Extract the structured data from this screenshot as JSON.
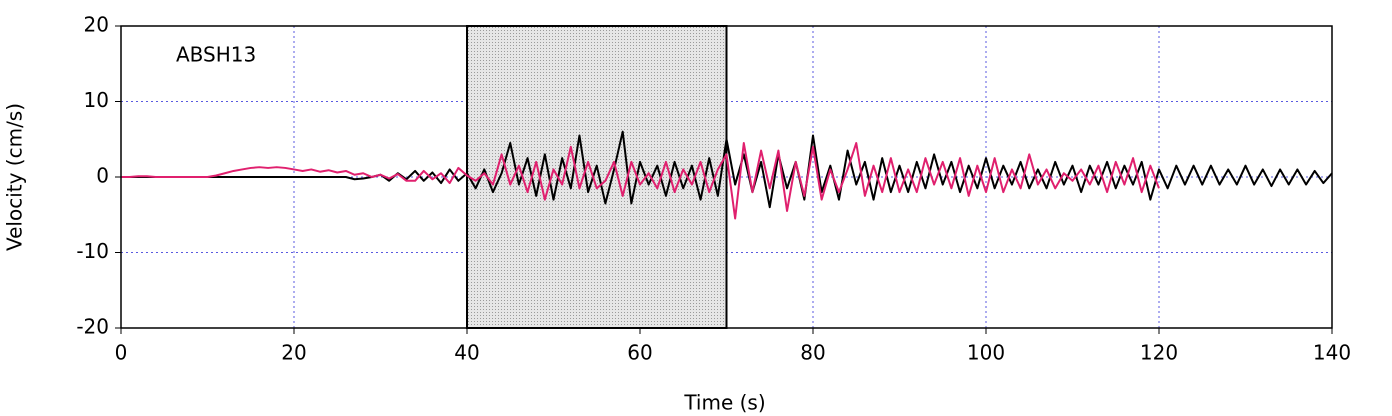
{
  "chart_data": {
    "type": "line",
    "annotation": "ABSH13",
    "xlabel": "Time (s)",
    "ylabel": "Velocity (cm/s)",
    "xlim": [
      0,
      140
    ],
    "ylim": [
      -20,
      20
    ],
    "xticks": [
      0,
      20,
      40,
      60,
      80,
      100,
      120,
      140
    ],
    "yticks": [
      -20,
      -10,
      0,
      10,
      20
    ],
    "grid": true,
    "shaded_region": [
      40,
      70
    ],
    "x": [
      0,
      1,
      2,
      3,
      4,
      5,
      6,
      7,
      8,
      9,
      10,
      11,
      12,
      13,
      14,
      15,
      16,
      17,
      18,
      19,
      20,
      21,
      22,
      23,
      24,
      25,
      26,
      27,
      28,
      29,
      30,
      31,
      32,
      33,
      34,
      35,
      36,
      37,
      38,
      39,
      40,
      41,
      42,
      43,
      44,
      45,
      46,
      47,
      48,
      49,
      50,
      51,
      52,
      53,
      54,
      55,
      56,
      57,
      58,
      59,
      60,
      61,
      62,
      63,
      64,
      65,
      66,
      67,
      68,
      69,
      70,
      71,
      72,
      73,
      74,
      75,
      76,
      77,
      78,
      79,
      80,
      81,
      82,
      83,
      84,
      85,
      86,
      87,
      88,
      89,
      90,
      91,
      92,
      93,
      94,
      95,
      96,
      97,
      98,
      99,
      100,
      101,
      102,
      103,
      104,
      105,
      106,
      107,
      108,
      109,
      110,
      111,
      112,
      113,
      114,
      115,
      116,
      117,
      118,
      119,
      120,
      121,
      122,
      123,
      124,
      125,
      126,
      127,
      128,
      129,
      130,
      131,
      132,
      133,
      134,
      135,
      136,
      137,
      138,
      139,
      140
    ],
    "series": [
      {
        "color": "#000000",
        "values": [
          0,
          0,
          0,
          0,
          0,
          0,
          0,
          0,
          0,
          0,
          0,
          0,
          0,
          0,
          0,
          0,
          0,
          0,
          0,
          0,
          0,
          0,
          0,
          0,
          0,
          0,
          0,
          -0.3,
          -0.2,
          0,
          0.3,
          -0.5,
          0.5,
          -0.3,
          0.8,
          -0.5,
          0.6,
          -0.8,
          1,
          -0.5,
          0.5,
          -1.5,
          1,
          -2,
          0.5,
          4.5,
          -1,
          2.5,
          -2.5,
          3,
          -3,
          2.5,
          -1.5,
          5.5,
          -2,
          1.5,
          -3.5,
          1,
          6,
          -3.5,
          2,
          -1,
          1.5,
          -2.5,
          2,
          -1.5,
          1.5,
          -3,
          2.5,
          -2.5,
          5,
          -1,
          3,
          -2,
          2,
          -4,
          3,
          -1.5,
          2,
          -3,
          5.5,
          -2,
          1.5,
          -3,
          3.5,
          -1,
          2,
          -3,
          2.5,
          -2,
          1.5,
          -2,
          2,
          -1.5,
          3,
          -1,
          2,
          -2,
          1.5,
          -1.5,
          2.5,
          -1.5,
          1.5,
          -1,
          2,
          -1.5,
          1,
          -1.5,
          2,
          -1,
          1.5,
          -2,
          1.5,
          -1,
          2,
          -1.5,
          1.5,
          -1,
          2,
          -3,
          1,
          -1.5,
          1.5,
          -1,
          1.5,
          -1,
          1.5,
          -1,
          1,
          -1,
          1.5,
          -1,
          1,
          -1.2,
          1,
          -1,
          1,
          -1,
          0.8,
          -0.8,
          0.5
        ]
      },
      {
        "color": "#e0206e",
        "values": [
          0,
          0,
          0.1,
          0.1,
          0,
          0,
          0,
          0,
          0,
          0,
          0,
          0.2,
          0.5,
          0.8,
          1,
          1.2,
          1.3,
          1.2,
          1.3,
          1.2,
          1,
          0.8,
          1,
          0.7,
          0.9,
          0.6,
          0.8,
          0.3,
          0.5,
          0,
          0.3,
          -0.2,
          0.4,
          -0.5,
          -0.5,
          0.8,
          -0.3,
          0.5,
          -0.8,
          1.2,
          0.2,
          -0.5,
          0.5,
          -1,
          3,
          -1,
          1.5,
          -2,
          2,
          -3,
          1,
          -1,
          4,
          -1.5,
          2,
          -1.5,
          -0.5,
          2,
          -2.5,
          2,
          -1,
          0.5,
          -1.5,
          2,
          -2,
          1,
          -1,
          2,
          -2,
          1,
          3,
          -5.5,
          4.5,
          -2,
          3.5,
          -1.5,
          3.5,
          -4.5,
          2,
          -2.5,
          4,
          -3,
          1,
          -2,
          1,
          4.5,
          -2.5,
          1.5,
          -2,
          2.5,
          -2,
          1,
          -2,
          2.5,
          -1,
          2,
          -1.5,
          2.5,
          -2.5,
          1.5,
          -2,
          2.5,
          -2,
          1,
          -1.5,
          3,
          -1,
          1,
          -1.5,
          0.5,
          -0.5,
          1,
          -1,
          1.5,
          -2,
          2,
          -1,
          2.5,
          -2,
          1.5,
          -1.5,
          null,
          null,
          null,
          null,
          null,
          null,
          null,
          null,
          null,
          null,
          null,
          null,
          null,
          null,
          null,
          null,
          null,
          null,
          null,
          null
        ]
      }
    ]
  }
}
